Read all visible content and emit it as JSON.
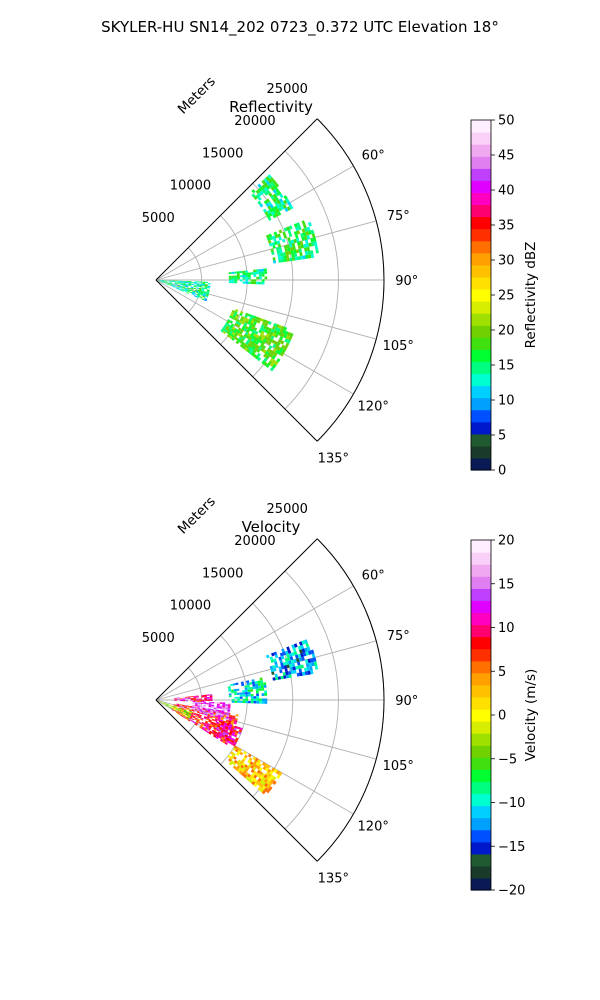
{
  "title": "SKYLER-HU  SN14_202  0723_0.372 UTC Elevation 18°",
  "chart_data": [
    {
      "type": "heatmap",
      "subtitle": "Reflectivity",
      "radial_label": "Meters",
      "radial_ticks": [
        "5000",
        "10000",
        "15000",
        "20000",
        "25000"
      ],
      "radial_tick_values": [
        5000,
        10000,
        15000,
        20000,
        25000
      ],
      "angle_ticks": [
        "60°",
        "75°",
        "90°",
        "105°",
        "120°",
        "135°"
      ],
      "angle_tick_values": [
        60,
        75,
        90,
        105,
        120,
        135
      ],
      "theta_range": [
        45,
        135
      ],
      "r_range": [
        0,
        25000
      ],
      "grid": true,
      "colorbar": {
        "label": "Reflectivity dBZ",
        "range": [
          0,
          50
        ],
        "ticks": [
          "0",
          "5",
          "10",
          "15",
          "20",
          "25",
          "30",
          "35",
          "40",
          "45",
          "50"
        ],
        "tick_values": [
          0,
          5,
          10,
          15,
          20,
          25,
          30,
          35,
          40,
          45,
          50
        ],
        "colors": [
          "#0a1a55",
          "#1a3a2a",
          "#1f5a30",
          "#0018cc",
          "#0050ff",
          "#00a0ff",
          "#00d0ff",
          "#00ffd0",
          "#00ff80",
          "#00ff30",
          "#40e010",
          "#70d000",
          "#a0e000",
          "#d8ee00",
          "#ffff00",
          "#ffe000",
          "#ffc000",
          "#ffa000",
          "#ff7000",
          "#ff3000",
          "#ff0000",
          "#ff0070",
          "#ff00c0",
          "#e000ff",
          "#c040ff",
          "#e080f0",
          "#f0a8f0",
          "#f8d0f8",
          "#ffeeff"
        ]
      },
      "echo_regions": [
        {
          "az": [
            47,
            62
          ],
          "r": [
            14000,
            17000
          ],
          "value": 15
        },
        {
          "az": [
            68,
            82
          ],
          "r": [
            13000,
            18000
          ],
          "value": 16
        },
        {
          "az": [
            84,
            92
          ],
          "r": [
            8000,
            12000
          ],
          "value": 15
        },
        {
          "az": [
            110,
            128
          ],
          "r": [
            9000,
            16000
          ],
          "value": 18
        },
        {
          "az": [
            92,
            112
          ],
          "r": [
            0,
            6000
          ],
          "value": 14
        }
      ]
    },
    {
      "type": "heatmap",
      "subtitle": "Velocity",
      "radial_label": "Meters",
      "radial_ticks": [
        "5000",
        "10000",
        "15000",
        "20000",
        "25000"
      ],
      "radial_tick_values": [
        5000,
        10000,
        15000,
        20000,
        25000
      ],
      "angle_ticks": [
        "60°",
        "75°",
        "90°",
        "105°",
        "120°",
        "135°"
      ],
      "angle_tick_values": [
        60,
        75,
        90,
        105,
        120,
        135
      ],
      "theta_range": [
        45,
        135
      ],
      "r_range": [
        0,
        25000
      ],
      "grid": true,
      "colorbar": {
        "label": "Velocity (m/s)",
        "range": [
          -20,
          20
        ],
        "ticks": [
          "−20",
          "−15",
          "−10",
          "−5",
          "0",
          "5",
          "10",
          "15",
          "20"
        ],
        "tick_values": [
          -20,
          -15,
          -10,
          -5,
          0,
          5,
          10,
          15,
          20
        ],
        "colors": [
          "#0a1a55",
          "#1a3a2a",
          "#1f5a30",
          "#0018cc",
          "#0050ff",
          "#00a0ff",
          "#00d0ff",
          "#00ffd0",
          "#00ff80",
          "#00ff30",
          "#40e010",
          "#70d000",
          "#a0e000",
          "#d8ee00",
          "#ffff00",
          "#ffe000",
          "#ffc000",
          "#ffa000",
          "#ff7000",
          "#ff3000",
          "#ff0000",
          "#ff0070",
          "#ff00c0",
          "#e000ff",
          "#c040ff",
          "#e080f0",
          "#f0a8f0",
          "#f8d0f8",
          "#ffeeff"
        ]
      },
      "echo_regions": [
        {
          "az": [
            100,
            122
          ],
          "r": [
            2000,
            9000
          ],
          "value": 8
        },
        {
          "az": [
            92,
            105
          ],
          "r": [
            4000,
            8000
          ],
          "value": 14
        },
        {
          "az": [
            108,
            120
          ],
          "r": [
            7000,
            10000
          ],
          "value": 10
        },
        {
          "az": [
            84,
            92
          ],
          "r": [
            2000,
            6000
          ],
          "value": 10
        },
        {
          "az": [
            78,
            92
          ],
          "r": [
            8000,
            12000
          ],
          "value": -10
        },
        {
          "az": [
            68,
            80
          ],
          "r": [
            13000,
            18000
          ],
          "value": -12
        },
        {
          "az": [
            108,
            118
          ],
          "r": [
            0,
            4000
          ],
          "value": -3
        },
        {
          "az": [
            120,
            130
          ],
          "r": [
            10000,
            16000
          ],
          "value": 2
        }
      ]
    }
  ]
}
